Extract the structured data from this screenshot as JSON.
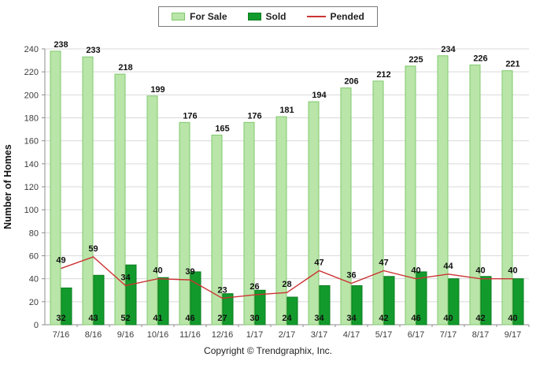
{
  "chart_data": {
    "type": "bar",
    "categories": [
      "7/16",
      "8/16",
      "9/16",
      "10/16",
      "11/16",
      "12/16",
      "1/17",
      "2/17",
      "3/17",
      "4/17",
      "5/17",
      "6/17",
      "7/17",
      "8/17",
      "9/17"
    ],
    "series": [
      {
        "name": "For Sale",
        "type": "bar",
        "color": "#b9e5a9",
        "border": "#7fc96b",
        "values": [
          238,
          233,
          218,
          199,
          176,
          165,
          176,
          181,
          194,
          206,
          212,
          225,
          234,
          226,
          221
        ],
        "label_position": "above-bar"
      },
      {
        "name": "Sold",
        "type": "bar",
        "color": "#129b2c",
        "border": "#0b7c20",
        "values": [
          32,
          43,
          52,
          41,
          46,
          27,
          30,
          24,
          34,
          34,
          42,
          46,
          40,
          42,
          40
        ],
        "label_position": "bottom"
      },
      {
        "name": "Pended",
        "type": "line",
        "color": "#cc3333",
        "values": [
          49,
          59,
          34,
          40,
          39,
          23,
          26,
          28,
          47,
          36,
          47,
          40,
          44,
          40,
          40
        ],
        "label_position": "above-point"
      }
    ],
    "title": "",
    "xlabel": "",
    "ylabel": "Number of Homes",
    "ylim": [
      0,
      240
    ],
    "ytick_step": 20,
    "grid": true,
    "legend_position": "top"
  },
  "footer": {
    "copyright": "Copyright © Trendgraphix, Inc."
  }
}
